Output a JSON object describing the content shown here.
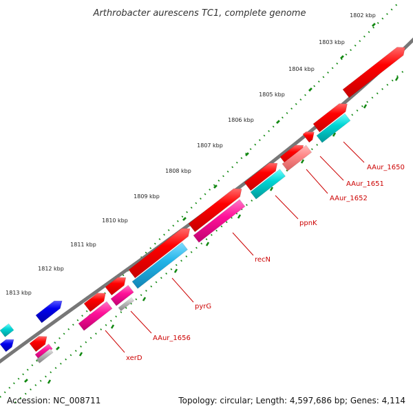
{
  "title": "Arthrobacter aurescens TC1, complete genome",
  "accession": "Accession: NC_008711",
  "topology": "Topology: circular; Length: 4,597,686 bp; Genes: 4,114",
  "kbp_ticks": [
    "1802 kbp",
    "1803 kbp",
    "1804 kbp",
    "1805 kbp",
    "1806 kbp",
    "1807 kbp",
    "1808 kbp",
    "1809 kbp",
    "1810 kbp",
    "1811 kbp",
    "1812 kbp",
    "1813 kbp"
  ],
  "gene_labels": [
    "AAur_1650",
    "AAur_1651",
    "AAur_1652",
    "ppnK",
    "recN",
    "pyrG",
    "AAur_1656",
    "xerD"
  ],
  "colors": {
    "backbone": "#777777",
    "cds": "#ff0000",
    "reverse_cds": "#0000dd",
    "cyan": "#00cccc",
    "sky": "#22b4e8",
    "magenta": "#ff1199",
    "pink": "#ff8888",
    "gray": "#bbbbbb",
    "tick": "#118811",
    "label": "#cc0000"
  }
}
